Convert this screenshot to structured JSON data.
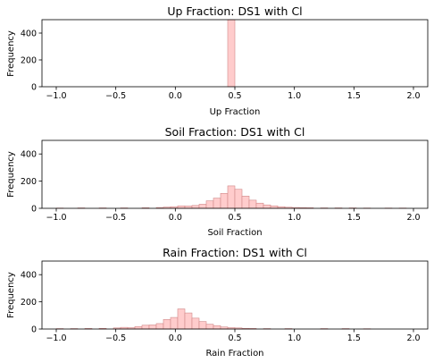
{
  "chart_data": [
    {
      "type": "bar",
      "title": "Up Fraction: DS1 with Cl",
      "xlabel": "Up Fraction",
      "ylabel": "Frequency",
      "xlim": [
        -1.12,
        2.12
      ],
      "ylim": [
        0,
        500
      ],
      "xticks": [
        "−1.0",
        "−0.5",
        "0.0",
        "0.5",
        "1.0",
        "1.5",
        "2.0"
      ],
      "xtick_values": [
        -1.0,
        -0.5,
        0.0,
        0.5,
        1.0,
        1.5,
        2.0
      ],
      "yticks": [
        "0",
        "200",
        "400"
      ],
      "ytick_values": [
        0,
        200,
        400
      ],
      "bin_width": 0.06,
      "bar_color": "#ffcccc",
      "edge_color": "#d08888",
      "bars": [
        {
          "x0": 0.44,
          "value": 500
        }
      ]
    },
    {
      "type": "bar",
      "title": "Soil Fraction: DS1 with Cl",
      "xlabel": "Soil Fraction",
      "ylabel": "Frequency",
      "xlim": [
        -1.12,
        2.12
      ],
      "ylim": [
        0,
        500
      ],
      "xticks": [
        "−1.0",
        "−0.5",
        "0.0",
        "0.5",
        "1.0",
        "1.5",
        "2.0"
      ],
      "xtick_values": [
        -1.0,
        -0.5,
        0.0,
        0.5,
        1.0,
        1.5,
        2.0
      ],
      "yticks": [
        "0",
        "200",
        "400"
      ],
      "ytick_values": [
        0,
        200,
        400
      ],
      "bin_width": 0.06,
      "bar_color": "#ffcccc",
      "edge_color": "#d08888",
      "bars": [
        {
          "x0": -1.0,
          "value": 2
        },
        {
          "x0": -0.82,
          "value": 3
        },
        {
          "x0": -0.64,
          "value": 3
        },
        {
          "x0": -0.46,
          "value": 3
        },
        {
          "x0": -0.28,
          "value": 4
        },
        {
          "x0": -0.16,
          "value": 6
        },
        {
          "x0": -0.1,
          "value": 9
        },
        {
          "x0": -0.04,
          "value": 12
        },
        {
          "x0": 0.02,
          "value": 18
        },
        {
          "x0": 0.08,
          "value": 17
        },
        {
          "x0": 0.14,
          "value": 21
        },
        {
          "x0": 0.2,
          "value": 30
        },
        {
          "x0": 0.26,
          "value": 55
        },
        {
          "x0": 0.32,
          "value": 75
        },
        {
          "x0": 0.38,
          "value": 110
        },
        {
          "x0": 0.44,
          "value": 165
        },
        {
          "x0": 0.5,
          "value": 140
        },
        {
          "x0": 0.56,
          "value": 90
        },
        {
          "x0": 0.62,
          "value": 60
        },
        {
          "x0": 0.68,
          "value": 38
        },
        {
          "x0": 0.74,
          "value": 25
        },
        {
          "x0": 0.8,
          "value": 18
        },
        {
          "x0": 0.86,
          "value": 12
        },
        {
          "x0": 0.92,
          "value": 8
        },
        {
          "x0": 0.98,
          "value": 6
        },
        {
          "x0": 1.04,
          "value": 5
        },
        {
          "x0": 1.1,
          "value": 4
        },
        {
          "x0": 1.22,
          "value": 3
        },
        {
          "x0": 1.34,
          "value": 3
        },
        {
          "x0": 1.46,
          "value": 3
        },
        {
          "x0": 1.58,
          "value": 2
        },
        {
          "x0": 1.76,
          "value": 2
        },
        {
          "x0": 1.88,
          "value": 2
        }
      ]
    },
    {
      "type": "bar",
      "title": "Rain Fraction: DS1 with Cl",
      "xlabel": "Rain Fraction",
      "ylabel": "Frequency",
      "xlim": [
        -1.12,
        2.12
      ],
      "ylim": [
        0,
        500
      ],
      "xticks": [
        "−1.0",
        "−0.5",
        "0.0",
        "0.5",
        "1.0",
        "1.5",
        "2.0"
      ],
      "xtick_values": [
        -1.0,
        -0.5,
        0.0,
        0.5,
        1.0,
        1.5,
        2.0
      ],
      "yticks": [
        "0",
        "200",
        "400"
      ],
      "ytick_values": [
        0,
        200,
        400
      ],
      "bin_width": 0.06,
      "bar_color": "#ffcccc",
      "edge_color": "#d08888",
      "bars": [
        {
          "x0": -1.0,
          "value": 3
        },
        {
          "x0": -0.88,
          "value": 3
        },
        {
          "x0": -0.76,
          "value": 4
        },
        {
          "x0": -0.64,
          "value": 5
        },
        {
          "x0": -0.52,
          "value": 8
        },
        {
          "x0": -0.46,
          "value": 12
        },
        {
          "x0": -0.4,
          "value": 10
        },
        {
          "x0": -0.34,
          "value": 18
        },
        {
          "x0": -0.28,
          "value": 28
        },
        {
          "x0": -0.22,
          "value": 30
        },
        {
          "x0": -0.16,
          "value": 40
        },
        {
          "x0": -0.1,
          "value": 70
        },
        {
          "x0": -0.04,
          "value": 85
        },
        {
          "x0": 0.02,
          "value": 148
        },
        {
          "x0": 0.08,
          "value": 118
        },
        {
          "x0": 0.14,
          "value": 80
        },
        {
          "x0": 0.2,
          "value": 55
        },
        {
          "x0": 0.26,
          "value": 35
        },
        {
          "x0": 0.32,
          "value": 25
        },
        {
          "x0": 0.38,
          "value": 15
        },
        {
          "x0": 0.44,
          "value": 10
        },
        {
          "x0": 0.5,
          "value": 8
        },
        {
          "x0": 0.56,
          "value": 5
        },
        {
          "x0": 0.62,
          "value": 4
        },
        {
          "x0": 0.74,
          "value": 3
        },
        {
          "x0": 0.92,
          "value": 3
        },
        {
          "x0": 1.22,
          "value": 3
        },
        {
          "x0": 1.4,
          "value": 3
        },
        {
          "x0": 1.58,
          "value": 2
        }
      ]
    }
  ]
}
